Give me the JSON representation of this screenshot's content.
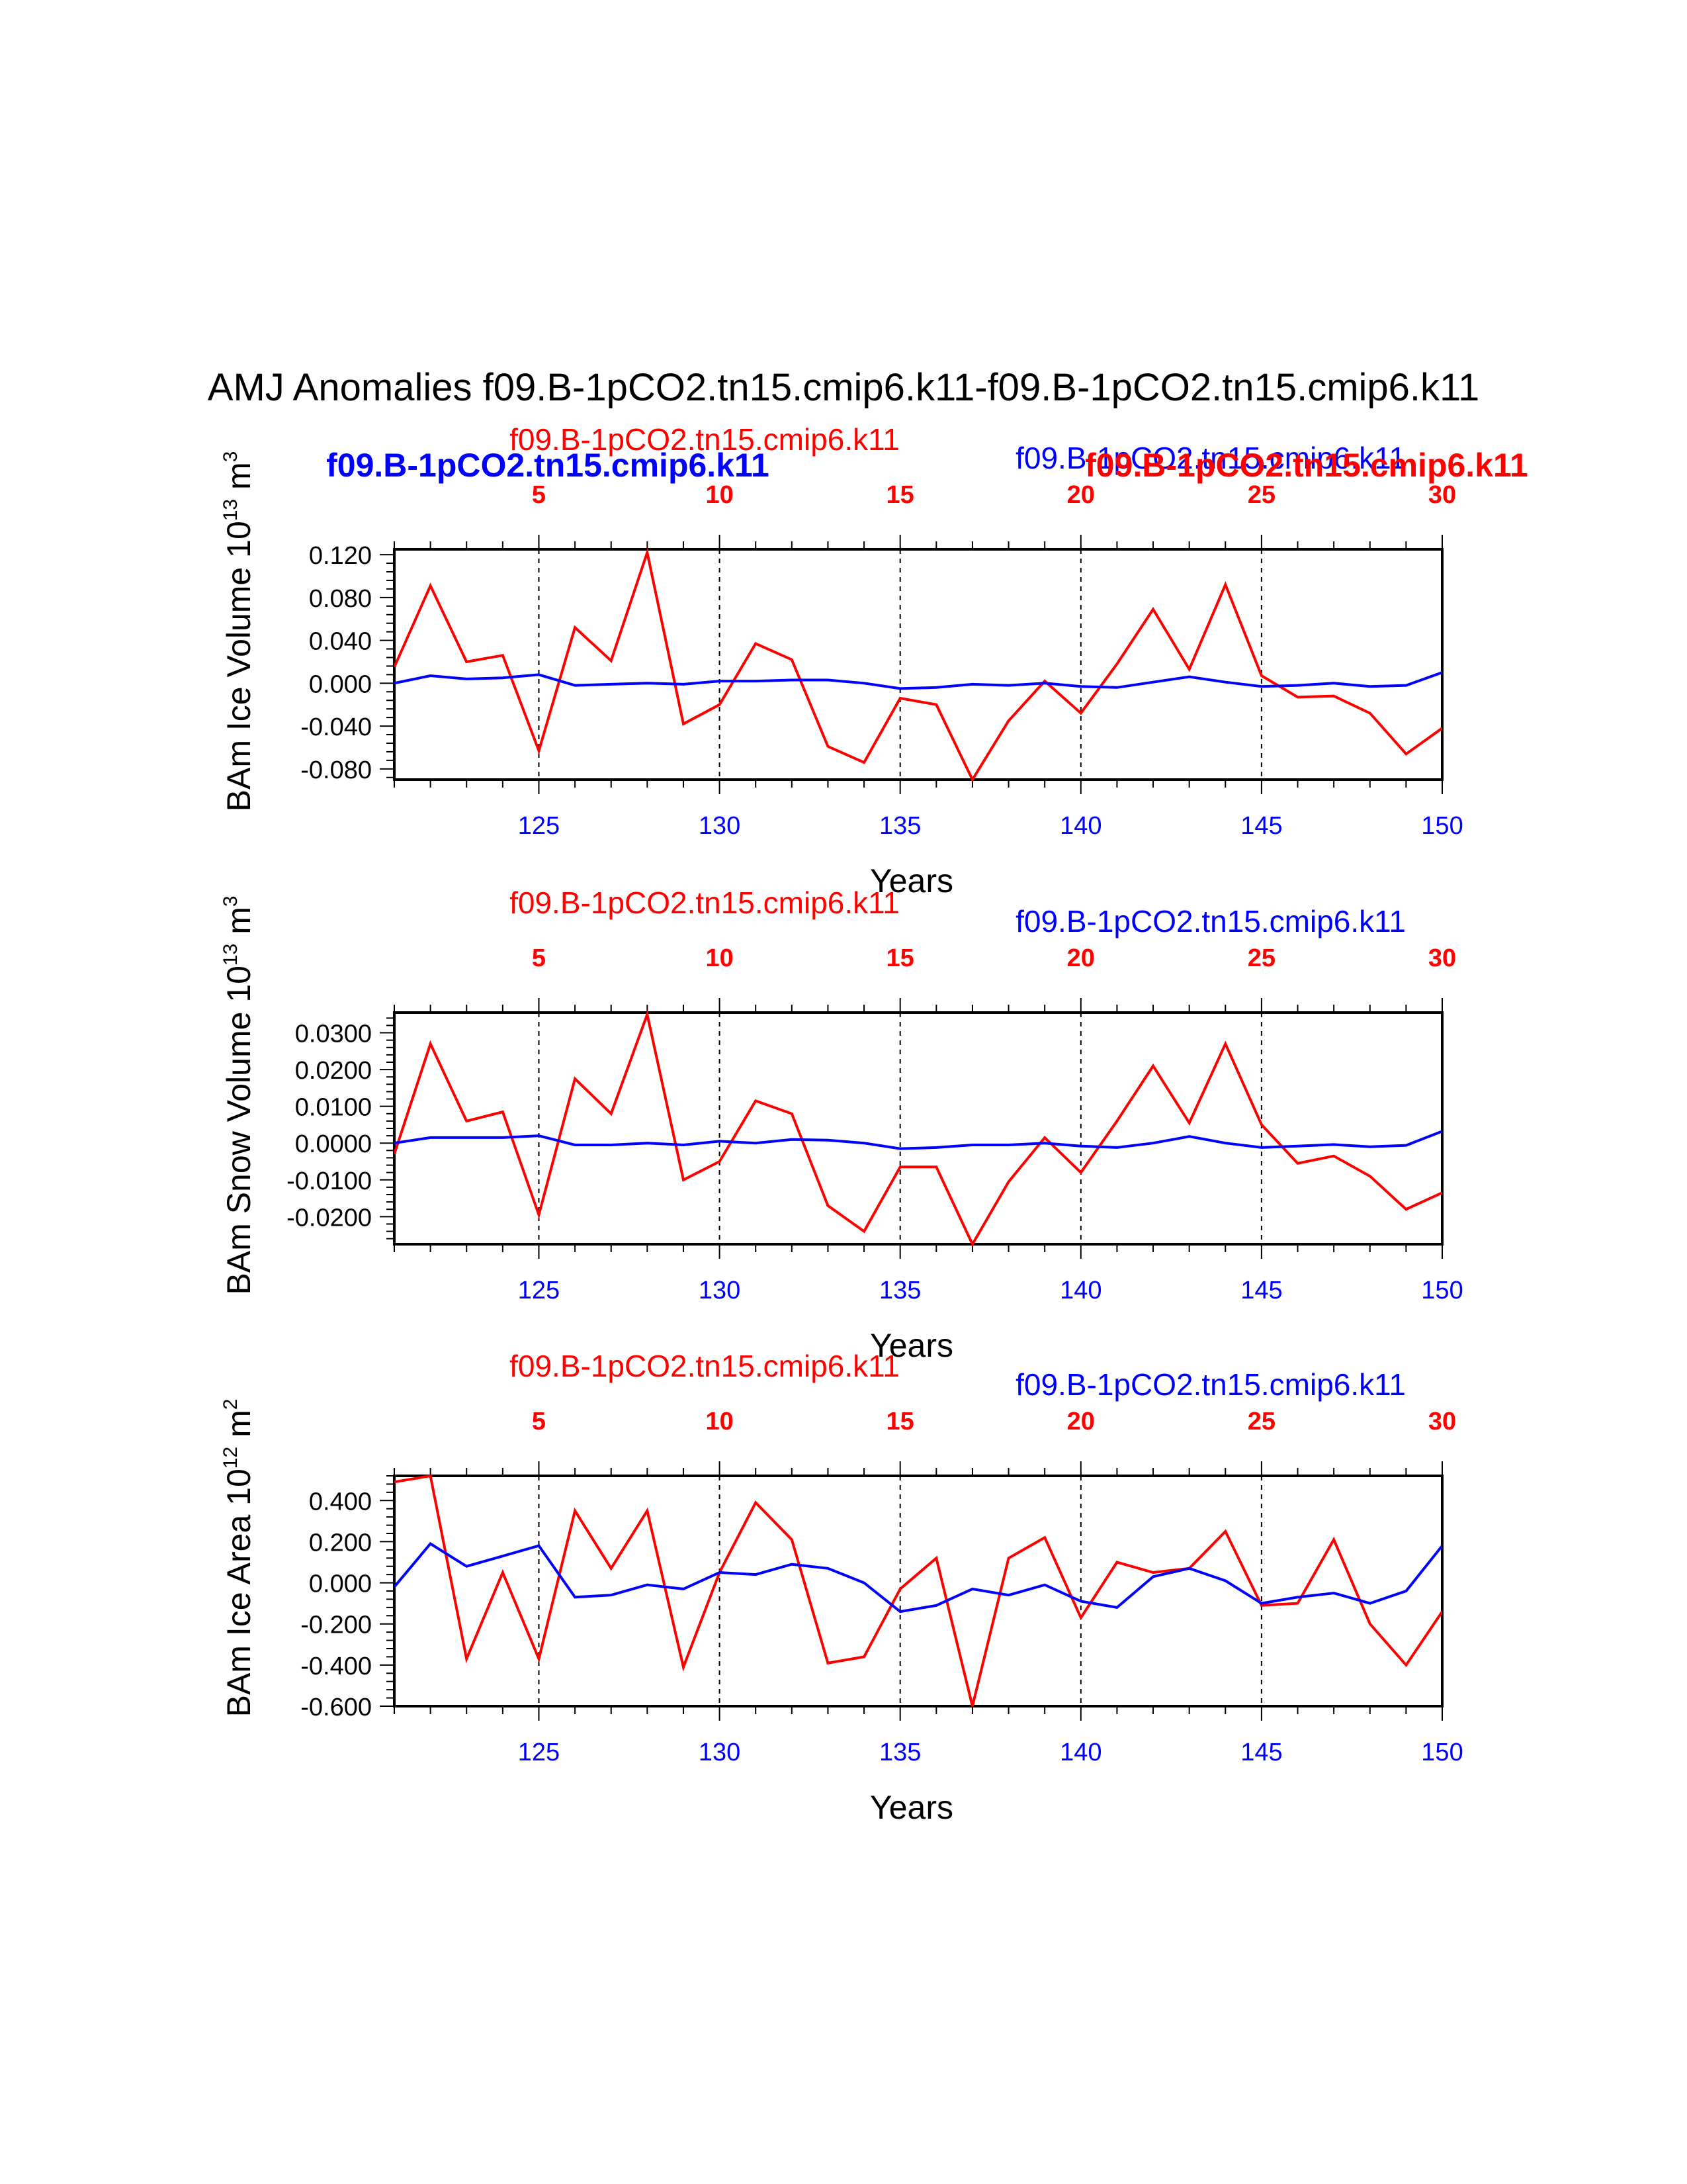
{
  "title": "AMJ Anomalies f09.B-1pCO2.tn15.cmip6.k11-f09.B-1pCO2.tn15.cmip6.k11",
  "colors": {
    "series_red": "#ff0000",
    "series_blue": "#0000ff",
    "axis": "#000000"
  },
  "header_labels": {
    "red_plain": "f09.B-1pCO2.tn15.cmip6.k11",
    "blue_plain": "f09.B-1pCO2.tn15.cmip6.k11",
    "blue_bold": "f09.B-1pCO2.tn15.cmip6.k11",
    "red_bold": "f09.B-1pCO2.tn15.cmip6.k11"
  },
  "chart_data": [
    {
      "type": "line",
      "ylabel": "BAm Ice Volume 10",
      "ylabel_exp": "13",
      "ylabel_unit": " m",
      "ylabel_unit_exp": "3",
      "xlabel": "Years",
      "xlim": [
        121,
        150
      ],
      "ylim": [
        -0.09,
        0.125
      ],
      "yticks": [
        -0.08,
        -0.04,
        0.0,
        0.04,
        0.08,
        0.12
      ],
      "ytick_labels": [
        "-0.080",
        "-0.040",
        "0.000",
        "0.040",
        "0.080",
        "0.120"
      ],
      "xticks_bottom": [
        125,
        130,
        135,
        140,
        145,
        150
      ],
      "xticks_bottom_labels": [
        "125",
        "130",
        "135",
        "140",
        "145",
        "150"
      ],
      "xticks_top_labels": [
        "5",
        "10",
        "15",
        "20",
        "25",
        "30"
      ],
      "x": [
        121,
        122,
        123,
        124,
        125,
        126,
        127,
        128,
        129,
        130,
        131,
        132,
        133,
        134,
        135,
        136,
        137,
        138,
        139,
        140,
        141,
        142,
        143,
        144,
        145,
        146,
        147,
        148,
        149,
        150
      ],
      "series": [
        {
          "name": "f09.B-1pCO2.tn15.cmip6.k11",
          "color": "#ff0000",
          "values": [
            0.015,
            0.091,
            0.02,
            0.026,
            -0.063,
            0.052,
            0.021,
            0.122,
            -0.038,
            -0.02,
            0.037,
            0.022,
            -0.059,
            -0.074,
            -0.014,
            -0.02,
            -0.09,
            -0.035,
            0.002,
            -0.028,
            0.018,
            0.069,
            0.013,
            0.092,
            0.007,
            -0.013,
            -0.012,
            -0.028,
            -0.066,
            -0.042
          ]
        },
        {
          "name": "f09.B-1pCO2.tn15.cmip6.k11",
          "color": "#0000ff",
          "values": [
            0.0,
            0.007,
            0.004,
            0.005,
            0.008,
            -0.002,
            -0.001,
            0.0,
            -0.001,
            0.002,
            0.002,
            0.003,
            0.003,
            0.0,
            -0.005,
            -0.004,
            -0.001,
            -0.002,
            0.0,
            -0.003,
            -0.004,
            0.001,
            0.006,
            0.001,
            -0.003,
            -0.002,
            0.0,
            -0.003,
            -0.002,
            0.01
          ]
        }
      ]
    },
    {
      "type": "line",
      "ylabel": "BAm Snow Volume 10",
      "ylabel_exp": "13",
      "ylabel_unit": " m",
      "ylabel_unit_exp": "3",
      "xlabel": "Years",
      "xlim": [
        121,
        150
      ],
      "ylim": [
        -0.0275,
        0.0355
      ],
      "yticks": [
        -0.02,
        -0.01,
        0.0,
        0.01,
        0.02,
        0.03
      ],
      "ytick_labels": [
        "-0.0200",
        "-0.0100",
        "0.0000",
        "0.0100",
        "0.0200",
        "0.0300"
      ],
      "xticks_bottom": [
        125,
        130,
        135,
        140,
        145,
        150
      ],
      "xticks_bottom_labels": [
        "125",
        "130",
        "135",
        "140",
        "145",
        "150"
      ],
      "xticks_top_labels": [
        "5",
        "10",
        "15",
        "20",
        "25",
        "30"
      ],
      "x": [
        121,
        122,
        123,
        124,
        125,
        126,
        127,
        128,
        129,
        130,
        131,
        132,
        133,
        134,
        135,
        136,
        137,
        138,
        139,
        140,
        141,
        142,
        143,
        144,
        145,
        146,
        147,
        148,
        149,
        150
      ],
      "series": [
        {
          "name": "f09.B-1pCO2.tn15.cmip6.k11",
          "color": "#ff0000",
          "values": [
            -0.003,
            0.027,
            0.006,
            0.0085,
            -0.0195,
            0.0175,
            0.008,
            0.035,
            -0.01,
            -0.005,
            0.0115,
            0.008,
            -0.017,
            -0.024,
            -0.0065,
            -0.0065,
            -0.0275,
            -0.0105,
            0.0015,
            -0.008,
            0.006,
            0.021,
            0.0055,
            0.027,
            0.005,
            -0.0055,
            -0.0035,
            -0.009,
            -0.018,
            -0.0135
          ]
        },
        {
          "name": "f09.B-1pCO2.tn15.cmip6.k11",
          "color": "#0000ff",
          "values": [
            0.0,
            0.0015,
            0.0015,
            0.0015,
            0.002,
            -0.0005,
            -0.0005,
            0.0,
            -0.0005,
            0.0005,
            0.0,
            0.001,
            0.0008,
            0.0,
            -0.0015,
            -0.0012,
            -0.0005,
            -0.0005,
            0.0,
            -0.0008,
            -0.0012,
            0.0,
            0.0018,
            0.0,
            -0.0012,
            -0.0008,
            -0.0004,
            -0.001,
            -0.0006,
            0.0032
          ]
        }
      ]
    },
    {
      "type": "line",
      "ylabel": "BAm Ice Area 10",
      "ylabel_exp": "12",
      "ylabel_unit": " m",
      "ylabel_unit_exp": "2",
      "xlabel": "Years",
      "xlim": [
        121,
        150
      ],
      "ylim": [
        -0.6,
        0.52
      ],
      "yticks": [
        -0.6,
        -0.4,
        -0.2,
        0.0,
        0.2,
        0.4
      ],
      "ytick_labels": [
        "-0.600",
        "-0.400",
        "-0.200",
        "0.000",
        "0.200",
        "0.400"
      ],
      "xticks_bottom": [
        125,
        130,
        135,
        140,
        145,
        150
      ],
      "xticks_bottom_labels": [
        "125",
        "130",
        "135",
        "140",
        "145",
        "150"
      ],
      "xticks_top_labels": [
        "5",
        "10",
        "15",
        "20",
        "25",
        "30"
      ],
      "x": [
        121,
        122,
        123,
        124,
        125,
        126,
        127,
        128,
        129,
        130,
        131,
        132,
        133,
        134,
        135,
        136,
        137,
        138,
        139,
        140,
        141,
        142,
        143,
        144,
        145,
        146,
        147,
        148,
        149,
        150
      ],
      "series": [
        {
          "name": "f09.B-1pCO2.tn15.cmip6.k11",
          "color": "#ff0000",
          "values": [
            0.49,
            0.52,
            -0.37,
            0.05,
            -0.37,
            0.35,
            0.07,
            0.35,
            -0.41,
            0.05,
            0.39,
            0.21,
            -0.39,
            -0.36,
            -0.03,
            0.12,
            -0.6,
            0.12,
            0.22,
            -0.17,
            0.1,
            0.05,
            0.07,
            0.25,
            -0.11,
            -0.1,
            0.21,
            -0.2,
            -0.4,
            -0.14
          ]
        },
        {
          "name": "f09.B-1pCO2.tn15.cmip6.k11",
          "color": "#0000ff",
          "values": [
            -0.02,
            0.19,
            0.08,
            0.13,
            0.18,
            -0.07,
            -0.06,
            -0.01,
            -0.03,
            0.05,
            0.04,
            0.09,
            0.07,
            0.0,
            -0.14,
            -0.11,
            -0.03,
            -0.06,
            -0.01,
            -0.09,
            -0.12,
            0.03,
            0.07,
            0.01,
            -0.1,
            -0.07,
            -0.05,
            -0.1,
            -0.04,
            0.18
          ]
        }
      ]
    }
  ]
}
